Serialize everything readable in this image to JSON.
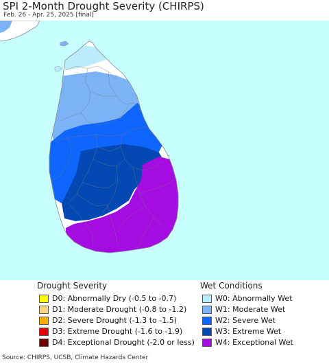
{
  "header": {
    "title": "SPI 2-Month Drought Severity (CHIRPS)",
    "subtitle": "Feb. 26 - Apr. 25, 2025 [final]"
  },
  "map": {
    "ocean_color": "#c7fefe",
    "land_color": "#ffffff",
    "border_color": "#8a8a8a",
    "boundary_color": "#777777"
  },
  "legend": {
    "drought": {
      "title": "Drought Severity",
      "items": [
        {
          "label": "D0: Abnormally Dry (-0.5 to -0.7)",
          "color": "#ffff00"
        },
        {
          "label": "D1: Moderate Drought (-0.8 to -1.2)",
          "color": "#fcd37f"
        },
        {
          "label": "D2: Severe Drought (-1.3 to -1.5)",
          "color": "#ffaa00"
        },
        {
          "label": "D3: Extreme Drought (-1.6 to -1.9)",
          "color": "#e60000"
        },
        {
          "label": "D4: Exceptional Drought (-2.0 or less)",
          "color": "#730000"
        }
      ]
    },
    "wet": {
      "title": "Wet Conditions",
      "items": [
        {
          "label": "W0: Abnormally Wet",
          "color": "#bcebfb"
        },
        {
          "label": "W1: Moderate Wet",
          "color": "#7cb3f6"
        },
        {
          "label": "W2: Severe Wet",
          "color": "#0f66fe"
        },
        {
          "label": "W3: Extreme Wet",
          "color": "#0449b3"
        },
        {
          "label": "W4: Exceptional Wet",
          "color": "#a40ce2"
        }
      ]
    }
  },
  "source": "Source: CHIRPS, UCSB, Climate Hazards Center"
}
